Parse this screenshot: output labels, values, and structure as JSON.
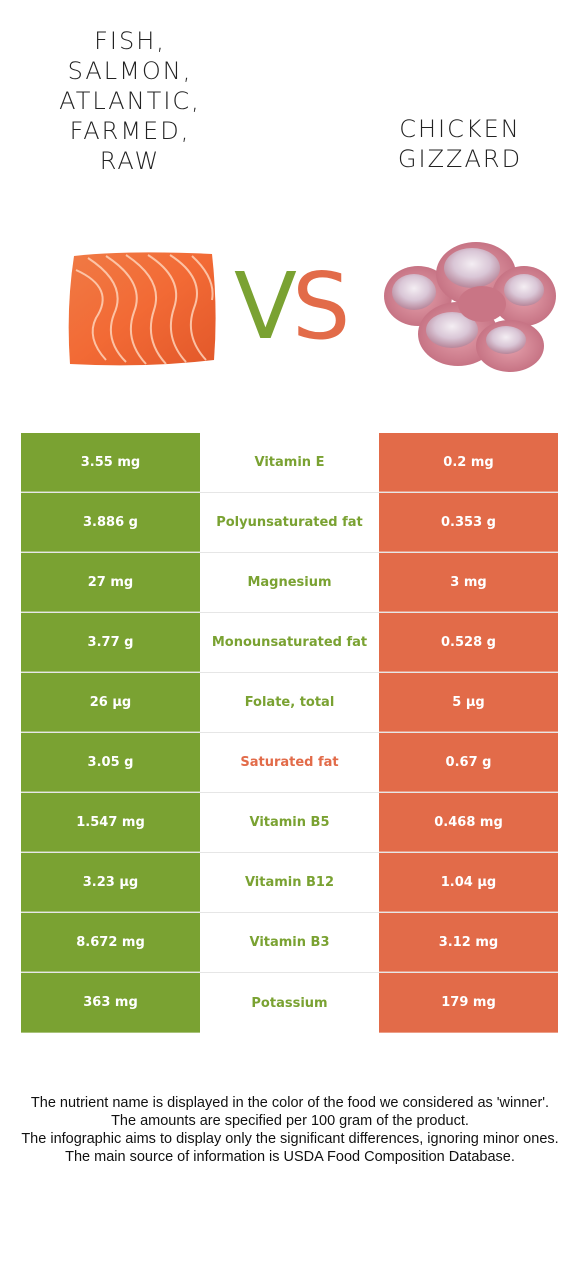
{
  "left_food": {
    "title_lines": [
      "FISH,",
      "SALMON,",
      "ATLANTIC,",
      "FARMED,",
      "RAW"
    ],
    "color": "#7aa232",
    "image": "salmon-fillet-image"
  },
  "right_food": {
    "title_lines": [
      "CHICKEN",
      "GIZZARD"
    ],
    "color": "#e26b49",
    "image": "chicken-gizzard-image"
  },
  "vs": {
    "v": "V",
    "s": "S"
  },
  "rows": [
    {
      "left": "3.55 mg",
      "nutrient": "Vitamin E",
      "right": "0.2 mg",
      "winner": "left"
    },
    {
      "left": "3.886 g",
      "nutrient": "Polyunsaturated fat",
      "right": "0.353 g",
      "winner": "left"
    },
    {
      "left": "27 mg",
      "nutrient": "Magnesium",
      "right": "3 mg",
      "winner": "left"
    },
    {
      "left": "3.77 g",
      "nutrient": "Monounsaturated fat",
      "right": "0.528 g",
      "winner": "left"
    },
    {
      "left": "26 µg",
      "nutrient": "Folate, total",
      "right": "5 µg",
      "winner": "left"
    },
    {
      "left": "3.05 g",
      "nutrient": "Saturated fat",
      "right": "0.67 g",
      "winner": "right"
    },
    {
      "left": "1.547 mg",
      "nutrient": "Vitamin B5",
      "right": "0.468 mg",
      "winner": "left"
    },
    {
      "left": "3.23 µg",
      "nutrient": "Vitamin B12",
      "right": "1.04 µg",
      "winner": "left"
    },
    {
      "left": "8.672 mg",
      "nutrient": "Vitamin B3",
      "right": "3.12 mg",
      "winner": "left"
    },
    {
      "left": "363 mg",
      "nutrient": "Potassium",
      "right": "179 mg",
      "winner": "left"
    }
  ],
  "footer": {
    "line1": "The nutrient name is displayed in the color of the food we considered as 'winner'.",
    "line2": "The amounts are specified per 100 gram of the product.",
    "line3": "The infographic aims to display only the significant differences, ignoring minor ones.",
    "line4": "The main source of information is USDA Food Composition Database."
  }
}
